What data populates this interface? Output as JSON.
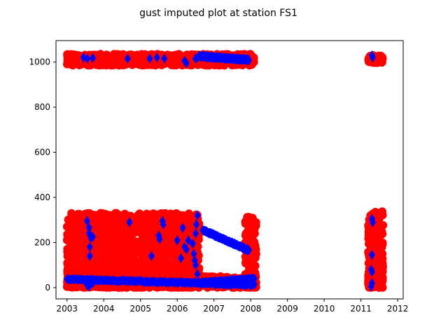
{
  "chart_data": {
    "type": "scatter",
    "title": "gust imputed plot at station FS1",
    "xlabel": "",
    "ylabel": "",
    "xlim": [
      2002.7,
      2012.15
    ],
    "ylim": [
      -50,
      1095
    ],
    "x_ticks": [
      "2003",
      "2004",
      "2005",
      "2006",
      "2007",
      "2008",
      "2009",
      "2010",
      "2011",
      "2012"
    ],
    "y_ticks": [
      "0",
      "200",
      "400",
      "600",
      "800",
      "1000"
    ],
    "grid": false,
    "legend": "none",
    "series": [
      {
        "marker": "circle",
        "color": "#ff0000",
        "clusters": [
          {
            "x": [
              2003.0,
              2006.6
            ],
            "y": [
              0,
              330
            ],
            "density": 2600
          },
          {
            "x": [
              2003.0,
              2008.1
            ],
            "y": [
              985,
              1035
            ],
            "density": 650
          },
          {
            "x": [
              2007.85,
              2008.15
            ],
            "y": [
              0,
              320
            ],
            "density": 180
          },
          {
            "x": [
              2006.6,
              2007.85
            ],
            "y": [
              0,
              50
            ],
            "density": 220
          },
          {
            "x": [
              2011.2,
              2011.6
            ],
            "y": [
              0,
              340
            ],
            "density": 320
          },
          {
            "x": [
              2011.2,
              2011.6
            ],
            "y": [
              995,
              1030
            ],
            "density": 60
          }
        ]
      },
      {
        "marker": "diamond",
        "color": "#0000ff",
        "line_segments": [
          {
            "from": [
              2003.0,
              38
            ],
            "to": [
              2008.1,
              12
            ]
          },
          {
            "from": [
              2006.6,
              20
            ],
            "to": [
              2008.1,
              38
            ]
          },
          {
            "from": [
              2006.7,
              255
            ],
            "to": [
              2007.95,
              165
            ]
          },
          {
            "from": [
              2006.6,
              1025
            ],
            "to": [
              2007.95,
              1010
            ]
          }
        ],
        "points": [
          [
            2003.45,
            1020
          ],
          [
            2003.55,
            1015
          ],
          [
            2003.7,
            1018
          ],
          [
            2004.65,
            1015
          ],
          [
            2005.25,
            1015
          ],
          [
            2005.45,
            1020
          ],
          [
            2005.65,
            1015
          ],
          [
            2006.2,
            1005
          ],
          [
            2006.25,
            995
          ],
          [
            2006.5,
            1015
          ],
          [
            2006.55,
            1020
          ],
          [
            2006.75,
            1025
          ],
          [
            2003.55,
            295
          ],
          [
            2003.6,
            265
          ],
          [
            2003.6,
            240
          ],
          [
            2003.65,
            220
          ],
          [
            2003.62,
            180
          ],
          [
            2003.62,
            140
          ],
          [
            2003.7,
            225
          ],
          [
            2004.7,
            290
          ],
          [
            2005.5,
            230
          ],
          [
            2005.52,
            215
          ],
          [
            2005.6,
            295
          ],
          [
            2005.62,
            280
          ],
          [
            2005.3,
            140
          ],
          [
            2006.0,
            210
          ],
          [
            2006.15,
            265
          ],
          [
            2006.2,
            180
          ],
          [
            2006.25,
            170
          ],
          [
            2006.3,
            210
          ],
          [
            2006.1,
            130
          ],
          [
            2006.42,
            195
          ],
          [
            2006.45,
            150
          ],
          [
            2006.5,
            100
          ],
          [
            2006.55,
            60
          ],
          [
            2006.55,
            320
          ],
          [
            2006.52,
            280
          ],
          [
            2006.5,
            240
          ],
          [
            2006.48,
            120
          ],
          [
            2003.55,
            10
          ],
          [
            2003.6,
            5
          ],
          [
            2003.7,
            20
          ],
          [
            2011.3,
            305
          ],
          [
            2011.32,
            290
          ],
          [
            2011.3,
            145
          ],
          [
            2011.28,
            80
          ],
          [
            2011.3,
            70
          ],
          [
            2011.3,
            20
          ],
          [
            2011.28,
            5
          ],
          [
            2011.32,
            1020
          ],
          [
            2011.3,
            1030
          ]
        ]
      }
    ]
  }
}
